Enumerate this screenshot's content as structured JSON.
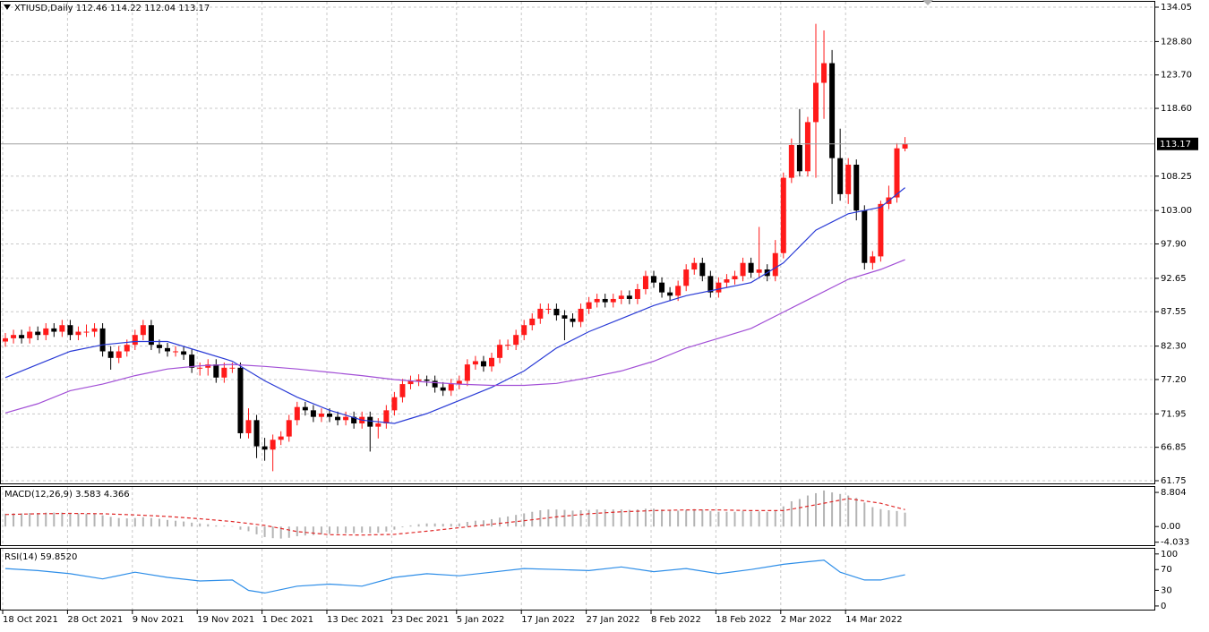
{
  "chart_data": [
    {
      "type": "candlestick",
      "title": "XTIUSD,Daily  112.46 114.22 112.04 113.17",
      "categories": [
        "18 Oct 2021",
        null,
        null,
        null,
        null,
        null,
        null,
        null,
        "28 Oct 2021",
        null,
        null,
        null,
        null,
        null,
        null,
        null,
        "9 Nov 2021",
        null,
        null,
        null,
        null,
        null,
        null,
        null,
        "19 Nov 2021",
        null,
        null,
        null,
        null,
        null,
        null,
        null,
        "1 Dec 2021",
        null,
        null,
        null,
        null,
        null,
        null,
        null,
        "13 Dec 2021",
        null,
        null,
        null,
        null,
        null,
        null,
        null,
        "23 Dec 2021",
        null,
        null,
        null,
        null,
        null,
        null,
        null,
        "5 Jan 2022",
        null,
        null,
        null,
        null,
        null,
        null,
        null,
        "17 Jan 2022",
        null,
        null,
        null,
        null,
        null,
        null,
        null,
        "27 Jan 2022",
        null,
        null,
        null,
        null,
        null,
        null,
        null,
        "8 Feb 2022",
        null,
        null,
        null,
        null,
        null,
        null,
        null,
        "18 Feb 2022",
        null,
        null,
        null,
        null,
        null,
        null,
        null,
        "2 Mar 2022",
        null,
        null,
        null,
        null,
        null,
        null,
        null,
        "14 Mar 2022",
        null,
        null,
        null,
        null,
        null,
        null,
        null
      ],
      "candles": [
        [
          83,
          84.3,
          82.2,
          83.5
        ],
        [
          83.5,
          84.8,
          82.7,
          84
        ],
        [
          84,
          84.8,
          82.7,
          83.5
        ],
        [
          83.5,
          85.3,
          82.7,
          84.5
        ],
        [
          84.5,
          85.3,
          83.2,
          84
        ],
        [
          84,
          85.8,
          83.2,
          85
        ],
        [
          85,
          85.8,
          83.7,
          84.5
        ],
        [
          84.5,
          86.3,
          83.7,
          85.5
        ],
        [
          85.5,
          86.3,
          83.2,
          84
        ],
        [
          84,
          85.3,
          83.2,
          84.5
        ],
        [
          84.5,
          85.6,
          83.7,
          84.5
        ],
        [
          84.5,
          85.8,
          83.7,
          85
        ],
        [
          85,
          85.8,
          80.7,
          81.5
        ],
        [
          81.5,
          82.3,
          78.7,
          80.5
        ],
        [
          80.5,
          82.3,
          79.7,
          81.5
        ],
        [
          81.5,
          83.3,
          80.7,
          82.5
        ],
        [
          82.5,
          84.8,
          81.7,
          84
        ],
        [
          84,
          86.3,
          83.2,
          85.5
        ],
        [
          85.5,
          86.3,
          81.7,
          82.5
        ],
        [
          82.5,
          83.3,
          81.2,
          82
        ],
        [
          82,
          82.8,
          80.7,
          81.5
        ],
        [
          81.5,
          82.3,
          80.7,
          81.5
        ],
        [
          81.5,
          82.3,
          80.2,
          81
        ],
        [
          81,
          81.8,
          78.2,
          79
        ],
        [
          79,
          79.8,
          77.8,
          79
        ],
        [
          79,
          80.3,
          77.8,
          79.5
        ],
        [
          79.5,
          80.3,
          76.7,
          77.5
        ],
        [
          77.5,
          79.8,
          76.7,
          79
        ],
        [
          79,
          79.8,
          78.2,
          79
        ],
        [
          79,
          79.8,
          68.2,
          69
        ],
        [
          69,
          72.8,
          68.2,
          71
        ],
        [
          71,
          71.8,
          65.2,
          67
        ],
        [
          67,
          68.3,
          64.8,
          66.5
        ],
        [
          66.5,
          68.8,
          63.2,
          68
        ],
        [
          68,
          69.3,
          67.2,
          68.5
        ],
        [
          68.5,
          71.8,
          67.7,
          71
        ],
        [
          71,
          73.8,
          70.2,
          73
        ],
        [
          73,
          73.8,
          71.7,
          72.5
        ],
        [
          72.5,
          73.3,
          70.7,
          71.5
        ],
        [
          71.5,
          72.8,
          70.7,
          72
        ],
        [
          72,
          72.8,
          70.7,
          71.5
        ],
        [
          71.5,
          72.3,
          70.2,
          71
        ],
        [
          71,
          72.3,
          70.2,
          71.5
        ],
        [
          71.5,
          72.3,
          69.7,
          70.5
        ],
        [
          70.5,
          72.3,
          69.7,
          71.5
        ],
        [
          71.5,
          72.3,
          66.2,
          70
        ],
        [
          70,
          71.3,
          68.2,
          70.5
        ],
        [
          70.5,
          73.3,
          69.7,
          72.5
        ],
        [
          72.5,
          75.3,
          71.7,
          74.5
        ],
        [
          74.5,
          77.3,
          73.7,
          76.5
        ],
        [
          76.5,
          77.8,
          75.7,
          77
        ],
        [
          77,
          78,
          76.2,
          77.2
        ],
        [
          77.2,
          77.8,
          76.2,
          77
        ],
        [
          77,
          77.8,
          75.2,
          76
        ],
        [
          76,
          76.8,
          74.7,
          75.5
        ],
        [
          75.5,
          77.3,
          74.7,
          76.5
        ],
        [
          76.5,
          77.8,
          75.7,
          77
        ],
        [
          77,
          80.3,
          76.2,
          79.5
        ],
        [
          79.5,
          80.8,
          78.7,
          80
        ],
        [
          80,
          80.8,
          78.4,
          79.2
        ],
        [
          79.2,
          81.3,
          78.4,
          80.5
        ],
        [
          80.5,
          83.3,
          79.7,
          82.5
        ],
        [
          82.5,
          83.3,
          81.7,
          82.5
        ],
        [
          82.5,
          84.8,
          81.7,
          84
        ],
        [
          84,
          86.3,
          83.2,
          85.5
        ],
        [
          85.5,
          87.3,
          84.7,
          86.5
        ],
        [
          86.5,
          88.8,
          85.7,
          88
        ],
        [
          88,
          88.8,
          87.2,
          88
        ],
        [
          88,
          88.8,
          86.2,
          87
        ],
        [
          87,
          87.8,
          83.2,
          86.5
        ],
        [
          86.5,
          87.3,
          85.2,
          86
        ],
        [
          86,
          88.8,
          85.2,
          88
        ],
        [
          88,
          89.8,
          87.2,
          89
        ],
        [
          89,
          90.3,
          88.2,
          89.5
        ],
        [
          89.5,
          90.3,
          88.2,
          89
        ],
        [
          89,
          90.3,
          88.2,
          89.5
        ],
        [
          89.5,
          90.8,
          88.7,
          90
        ],
        [
          90,
          90.8,
          88.7,
          89.5
        ],
        [
          89.5,
          91.8,
          88.7,
          91
        ],
        [
          91,
          93.8,
          90.2,
          93
        ],
        [
          93,
          93.8,
          91.2,
          92
        ],
        [
          92,
          92.8,
          89.7,
          90.5
        ],
        [
          90.5,
          91.3,
          89.2,
          90
        ],
        [
          90,
          92.3,
          89.2,
          91.5
        ],
        [
          91.5,
          94.8,
          90.7,
          94
        ],
        [
          94,
          95.8,
          93.2,
          95
        ],
        [
          95,
          95.8,
          92.2,
          93
        ],
        [
          93,
          93.8,
          89.7,
          90.5
        ],
        [
          90.5,
          92.8,
          89.7,
          92
        ],
        [
          92,
          93.3,
          91.2,
          92.5
        ],
        [
          92.5,
          93.8,
          91.7,
          93
        ],
        [
          93,
          95.8,
          92.2,
          95
        ],
        [
          95,
          95.8,
          92.7,
          93.5
        ],
        [
          93.5,
          100.5,
          92.7,
          94
        ],
        [
          94,
          94.8,
          92.2,
          93
        ],
        [
          93,
          98.5,
          92.2,
          96.5
        ],
        [
          96.5,
          108.8,
          95.7,
          108
        ],
        [
          108,
          114,
          107.2,
          113
        ],
        [
          113,
          118.5,
          108.2,
          109
        ],
        [
          109,
          117.3,
          108.2,
          116.5
        ],
        [
          116.5,
          131.5,
          108,
          122.5
        ],
        [
          122.5,
          130.5,
          117,
          125.5
        ],
        [
          125.5,
          127.5,
          104,
          111
        ],
        [
          111,
          115.5,
          104.5,
          105.5
        ],
        [
          105.5,
          111,
          104,
          110
        ],
        [
          110,
          110.8,
          101.5,
          103
        ],
        [
          103,
          103.8,
          94,
          95
        ],
        [
          95,
          96.8,
          94,
          96
        ],
        [
          96,
          104.5,
          95.2,
          104
        ],
        [
          104,
          106.8,
          103.2,
          105
        ],
        [
          105,
          113.3,
          104.2,
          112.5
        ],
        [
          112.46,
          114.22,
          112.04,
          113.17
        ]
      ],
      "up_color": "#ff1a1a",
      "down_color": "#000000",
      "series": [
        {
          "color": "#2a3bd6",
          "x": [
            0,
            4,
            8,
            12,
            16,
            20,
            24,
            28,
            32,
            36,
            40,
            44,
            48,
            52,
            56,
            60,
            64,
            68,
            72,
            76,
            80,
            84,
            88,
            92,
            96,
            100,
            104,
            108,
            111
          ],
          "values": [
            77.5,
            79.5,
            81.5,
            82.5,
            83,
            83,
            81.5,
            80,
            77,
            74.5,
            72.5,
            71,
            70.5,
            72,
            74,
            76,
            78.5,
            82,
            84.5,
            86.5,
            88.5,
            90,
            91,
            92,
            95,
            100,
            102.5,
            103.5,
            106.5
          ]
        },
        {
          "color": "#a24fd6",
          "x": [
            0,
            4,
            8,
            12,
            16,
            20,
            24,
            28,
            32,
            36,
            40,
            44,
            48,
            52,
            56,
            60,
            64,
            68,
            72,
            76,
            80,
            84,
            88,
            92,
            96,
            100,
            104,
            108,
            111
          ],
          "values": [
            72.1,
            73.5,
            75.5,
            76.5,
            77.8,
            78.8,
            79.3,
            79.5,
            79.2,
            78.8,
            78.3,
            77.8,
            77.2,
            76.8,
            76.5,
            76.3,
            76.3,
            76.6,
            77.5,
            78.5,
            80,
            82,
            83.5,
            85,
            87.5,
            90,
            92.5,
            94,
            95.5
          ]
        }
      ],
      "last_price": 113.17,
      "ylim": [
        61.34,
        134.87
      ],
      "yticks": [
        134.05,
        {
          "value": 128.8,
          "label": "128.80"
        },
        {
          "value": 123.7,
          "label": "123.70"
        },
        {
          "value": 118.6,
          "label": "118.60"
        },
        108.25,
        {
          "value": 103,
          "label": "103.00"
        },
        {
          "value": 97.9,
          "label": "97.90"
        },
        92.65,
        87.55,
        {
          "value": 82.3,
          "label": "82.30"
        },
        {
          "value": 77.2,
          "label": "77.20"
        },
        71.95,
        66.85,
        61.75
      ],
      "grid": true
    },
    {
      "type": "macd",
      "title": "MACD(12,26,9) 3.583 4.366",
      "histogram": {
        "color": "#b4b4b4",
        "values": [
          3.3,
          3.4,
          3.4,
          3.5,
          3.5,
          3.6,
          3.6,
          3.6,
          3.5,
          3.4,
          3.3,
          3.3,
          2.9,
          2.5,
          2.2,
          2.1,
          2.2,
          2.4,
          2.2,
          2.0,
          1.7,
          1.5,
          1.3,
          1.0,
          0.8,
          0.6,
          0.3,
          0.2,
          0.1,
          -0.8,
          -1.2,
          -2.0,
          -2.7,
          -3.0,
          -3.1,
          -2.9,
          -2.5,
          -2.3,
          -2.2,
          -2.0,
          -1.9,
          -1.8,
          -1.7,
          -1.7,
          -1.6,
          -1.7,
          -1.6,
          -1.3,
          -0.8,
          -0.2,
          0.3,
          0.6,
          0.8,
          0.8,
          0.7,
          0.7,
          0.8,
          1.2,
          1.5,
          1.6,
          1.9,
          2.3,
          2.6,
          3.0,
          3.4,
          3.8,
          4.2,
          4.4,
          4.4,
          4.3,
          4.1,
          4.2,
          4.3,
          4.4,
          4.4,
          4.4,
          4.4,
          4.3,
          4.4,
          4.6,
          4.6,
          4.4,
          4.2,
          4.1,
          4.3,
          4.5,
          4.4,
          4.0,
          3.8,
          3.8,
          3.8,
          4.0,
          3.9,
          3.9,
          3.8,
          4.1,
          5.2,
          6.5,
          7.1,
          8.0,
          8.6,
          9.3,
          8.8,
          8.4,
          8.0,
          7.4,
          6.2,
          5.0,
          4.5,
          4.2,
          4.0,
          3.583
        ]
      },
      "signal": {
        "color": "#e02828",
        "x": [
          0,
          4,
          8,
          12,
          16,
          20,
          24,
          28,
          32,
          36,
          40,
          44,
          48,
          52,
          56,
          60,
          64,
          68,
          72,
          76,
          80,
          84,
          88,
          92,
          96,
          100,
          104,
          108,
          111
        ],
        "values": [
          3.1,
          3.3,
          3.4,
          3.3,
          3.0,
          2.6,
          2.0,
          1.3,
          0.3,
          -1.3,
          -2.1,
          -2.2,
          -2.0,
          -1.2,
          -0.3,
          0.6,
          1.5,
          2.5,
          3.3,
          3.8,
          4.1,
          4.3,
          4.3,
          4.1,
          4.1,
          5.6,
          7.2,
          6.0,
          4.366
        ]
      },
      "ylim": [
        -4.8,
        10.2
      ],
      "yticks": [
        8.804,
        {
          "value": 0,
          "label": "0.00"
        },
        -4.033
      ]
    },
    {
      "type": "line",
      "title": "RSI(14) 59.8520",
      "series": [
        {
          "color": "#2e8ee8",
          "x": [
            0,
            4,
            8,
            12,
            16,
            20,
            24,
            28,
            30,
            32,
            36,
            40,
            44,
            48,
            52,
            56,
            60,
            64,
            68,
            72,
            76,
            80,
            84,
            88,
            92,
            96,
            99,
            101,
            103,
            106,
            108,
            111
          ],
          "values": [
            72,
            68,
            62,
            52,
            65,
            55,
            48,
            50,
            30,
            25,
            38,
            42,
            38,
            55,
            62,
            58,
            65,
            72,
            70,
            68,
            75,
            66,
            72,
            62,
            70,
            80,
            85,
            88,
            65,
            50,
            50,
            59.852
          ]
        }
      ],
      "ylim": [
        -7,
        110
      ],
      "yticks": [
        100,
        70,
        30,
        0
      ]
    }
  ]
}
